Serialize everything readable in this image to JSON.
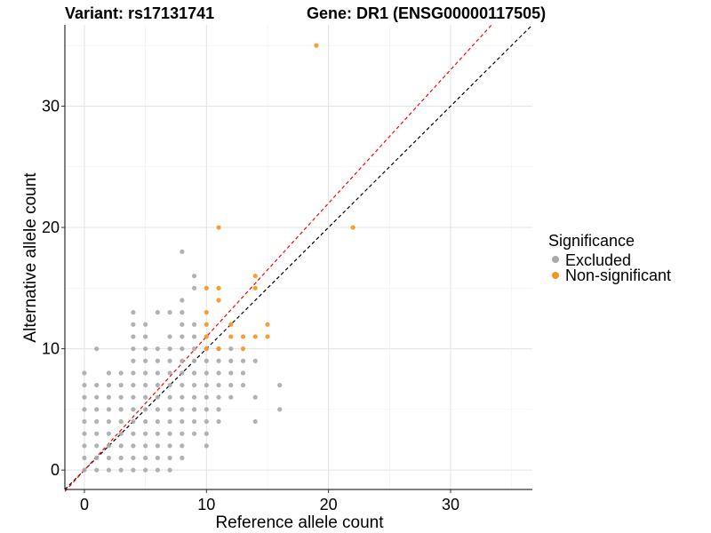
{
  "chart_data": {
    "type": "scatter",
    "title_left": "Variant: rs17131741",
    "title_right": "Gene: DR1 (ENSG00000117505)",
    "xlabel": "Reference allele count",
    "ylabel": "Alternative allele count",
    "xlim": [
      -1.6,
      36.7
    ],
    "ylim": [
      -1.6,
      36.7
    ],
    "x_ticks": [
      0,
      10,
      20,
      30
    ],
    "y_ticks": [
      0,
      10,
      20,
      30
    ],
    "grid": true,
    "legend": {
      "title": "Significance",
      "placement": "right",
      "entries": [
        {
          "label": "Excluded",
          "color": "#aaaaaa"
        },
        {
          "label": "Non-significant",
          "color": "#f7941d"
        }
      ]
    },
    "reference_lines": [
      {
        "color": "#000000",
        "style": "dashed",
        "slope": 1,
        "intercept": 0
      },
      {
        "color": "#ff0000",
        "style": "dashed",
        "slope": 1.1,
        "intercept": 0
      }
    ],
    "series": [
      {
        "name": "Excluded",
        "color": "#aaaaaa",
        "points": [
          [
            0,
            0
          ],
          [
            0,
            1
          ],
          [
            0,
            2
          ],
          [
            0,
            3
          ],
          [
            0,
            4
          ],
          [
            0,
            5
          ],
          [
            0,
            6
          ],
          [
            0,
            7
          ],
          [
            0,
            8
          ],
          [
            1,
            0
          ],
          [
            1,
            1
          ],
          [
            1,
            2
          ],
          [
            1,
            3
          ],
          [
            1,
            4
          ],
          [
            1,
            5
          ],
          [
            1,
            6
          ],
          [
            1,
            7
          ],
          [
            1,
            10
          ],
          [
            2,
            0
          ],
          [
            2,
            1
          ],
          [
            2,
            2
          ],
          [
            2,
            3
          ],
          [
            2,
            4
          ],
          [
            2,
            5
          ],
          [
            2,
            6
          ],
          [
            2,
            7
          ],
          [
            2,
            8
          ],
          [
            3,
            0
          ],
          [
            3,
            1
          ],
          [
            3,
            2
          ],
          [
            3,
            3
          ],
          [
            3,
            4
          ],
          [
            3,
            5
          ],
          [
            3,
            6
          ],
          [
            3,
            7
          ],
          [
            3,
            8
          ],
          [
            4,
            0
          ],
          [
            4,
            1
          ],
          [
            4,
            2
          ],
          [
            4,
            3
          ],
          [
            4,
            4
          ],
          [
            4,
            5
          ],
          [
            4,
            6
          ],
          [
            4,
            7
          ],
          [
            4,
            8
          ],
          [
            4,
            9
          ],
          [
            4,
            10
          ],
          [
            4,
            11
          ],
          [
            4,
            12
          ],
          [
            4,
            13
          ],
          [
            5,
            0
          ],
          [
            5,
            1
          ],
          [
            5,
            2
          ],
          [
            5,
            3
          ],
          [
            5,
            4
          ],
          [
            5,
            5
          ],
          [
            5,
            6
          ],
          [
            5,
            7
          ],
          [
            5,
            8
          ],
          [
            5,
            9
          ],
          [
            5,
            10
          ],
          [
            5,
            11
          ],
          [
            5,
            12
          ],
          [
            6,
            0
          ],
          [
            6,
            1
          ],
          [
            6,
            2
          ],
          [
            6,
            3
          ],
          [
            6,
            4
          ],
          [
            6,
            5
          ],
          [
            6,
            6
          ],
          [
            6,
            7
          ],
          [
            6,
            8
          ],
          [
            6,
            9
          ],
          [
            6,
            10
          ],
          [
            6,
            13
          ],
          [
            7,
            0
          ],
          [
            7,
            1
          ],
          [
            7,
            2
          ],
          [
            7,
            3
          ],
          [
            7,
            4
          ],
          [
            7,
            5
          ],
          [
            7,
            6
          ],
          [
            7,
            7
          ],
          [
            7,
            8
          ],
          [
            7,
            9
          ],
          [
            7,
            10
          ],
          [
            7,
            11
          ],
          [
            7,
            13
          ],
          [
            8,
            1
          ],
          [
            8,
            2
          ],
          [
            8,
            3
          ],
          [
            8,
            4
          ],
          [
            8,
            5
          ],
          [
            8,
            6
          ],
          [
            8,
            7
          ],
          [
            8,
            8
          ],
          [
            8,
            9
          ],
          [
            8,
            10
          ],
          [
            8,
            11
          ],
          [
            8,
            12
          ],
          [
            8,
            13
          ],
          [
            8,
            14
          ],
          [
            8,
            18
          ],
          [
            9,
            3
          ],
          [
            9,
            4
          ],
          [
            9,
            5
          ],
          [
            9,
            6
          ],
          [
            9,
            7
          ],
          [
            9,
            8
          ],
          [
            9,
            9
          ],
          [
            9,
            10
          ],
          [
            9,
            11
          ],
          [
            9,
            12
          ],
          [
            9,
            15
          ],
          [
            9,
            16
          ],
          [
            10,
            2
          ],
          [
            10,
            3
          ],
          [
            10,
            4
          ],
          [
            10,
            5
          ],
          [
            10,
            6
          ],
          [
            10,
            7
          ],
          [
            10,
            8
          ],
          [
            10,
            9
          ],
          [
            10,
            10
          ],
          [
            11,
            4
          ],
          [
            11,
            5
          ],
          [
            11,
            6
          ],
          [
            11,
            7
          ],
          [
            11,
            8
          ],
          [
            11,
            9
          ],
          [
            11,
            10
          ],
          [
            12,
            6
          ],
          [
            12,
            7
          ],
          [
            12,
            8
          ],
          [
            12,
            9
          ],
          [
            12,
            10
          ],
          [
            13,
            7
          ],
          [
            13,
            8
          ],
          [
            13,
            9
          ],
          [
            14,
            4
          ],
          [
            14,
            6
          ],
          [
            14,
            9
          ],
          [
            16,
            5
          ],
          [
            16,
            7
          ]
        ]
      },
      {
        "name": "Non-significant",
        "color": "#f7941d",
        "points": [
          [
            10,
            10
          ],
          [
            10,
            11
          ],
          [
            10,
            12
          ],
          [
            10,
            13
          ],
          [
            10,
            15
          ],
          [
            11,
            10
          ],
          [
            11,
            14
          ],
          [
            11,
            15
          ],
          [
            11,
            20
          ],
          [
            12,
            11
          ],
          [
            12,
            12
          ],
          [
            13,
            10
          ],
          [
            13,
            11
          ],
          [
            14,
            11
          ],
          [
            14,
            15
          ],
          [
            14,
            16
          ],
          [
            15,
            11
          ],
          [
            15,
            12
          ],
          [
            19,
            35
          ],
          [
            22,
            20
          ]
        ]
      }
    ]
  }
}
